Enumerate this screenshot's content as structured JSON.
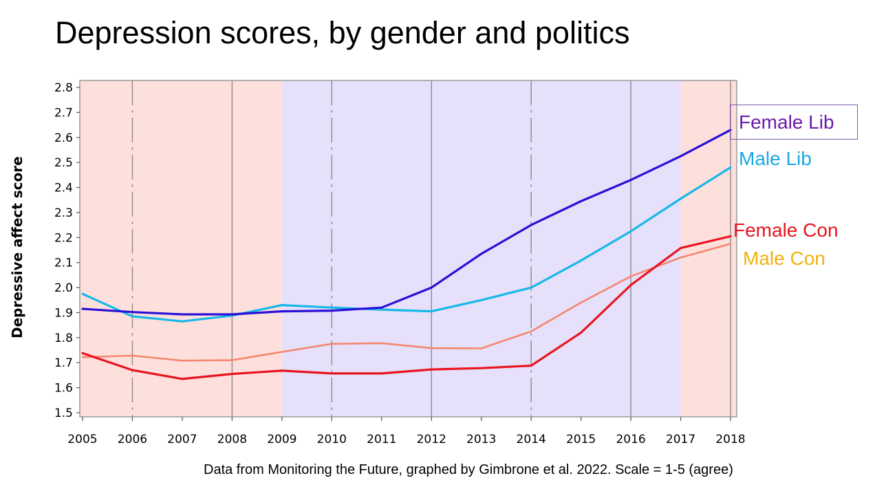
{
  "slide": {
    "title": "Depression scores, by gender and politics",
    "source": "Data from Monitoring the Future, graphed by Gimbrone et al. 2022. Scale = 1-5 (agree)"
  },
  "chart_data": {
    "type": "line",
    "title": "Depression scores, by gender and politics",
    "xlabel": "",
    "ylabel": "Depressive affect score",
    "x": [
      2005,
      2006,
      2007,
      2008,
      2009,
      2010,
      2011,
      2012,
      2013,
      2014,
      2015,
      2016,
      2017,
      2018
    ],
    "ylim": [
      1.5,
      2.8
    ],
    "xlim": [
      2005,
      2018
    ],
    "yticks": [
      "1.5",
      "1.6",
      "1.7",
      "1.8",
      "1.9",
      "2.0",
      "2.1",
      "2.2",
      "2.3",
      "2.4",
      "2.5",
      "2.6",
      "2.7",
      "2.8"
    ],
    "xticks": [
      "2005",
      "2006",
      "2007",
      "2008",
      "2009",
      "2010",
      "2011",
      "2012",
      "2013",
      "2014",
      "2015",
      "2016",
      "2017",
      "2018"
    ],
    "shaded_periods": [
      {
        "from": 2005,
        "to": 2009,
        "color": "#fde0dc"
      },
      {
        "from": 2009,
        "to": 2017,
        "color": "#e6e0fb"
      },
      {
        "from": 2017,
        "to": 2018.15,
        "color": "#fde0dc"
      }
    ],
    "grid": "vertical lines at each even year",
    "legend": "direct labels at right end of lines",
    "series": [
      {
        "name": "Female Lib",
        "color": "#2a0fd6",
        "label_color": "#6a1aa8",
        "values": [
          1.915,
          1.902,
          1.893,
          1.893,
          1.905,
          1.908,
          1.92,
          2.0,
          2.135,
          2.25,
          2.345,
          2.43,
          2.525,
          2.63
        ]
      },
      {
        "name": "Male Lib",
        "color": "#17b8e8",
        "label_color": "#1aa8e0",
        "values": [
          1.975,
          1.885,
          1.865,
          1.888,
          1.93,
          1.92,
          1.912,
          1.905,
          1.95,
          2.0,
          2.108,
          2.225,
          2.355,
          2.48
        ]
      },
      {
        "name": "Female Con",
        "color": "#e8141e",
        "label_color": "#e8141e",
        "values": [
          1.738,
          1.67,
          1.635,
          1.655,
          1.668,
          1.657,
          1.657,
          1.673,
          1.678,
          1.688,
          1.82,
          2.01,
          2.158,
          2.205
        ]
      },
      {
        "name": "Male Con",
        "color": "#f5866e",
        "label_color": "#f2b20f",
        "values": [
          1.722,
          1.728,
          1.708,
          1.71,
          1.743,
          1.775,
          1.778,
          1.758,
          1.757,
          1.825,
          1.94,
          2.045,
          2.12,
          2.175
        ]
      }
    ]
  }
}
